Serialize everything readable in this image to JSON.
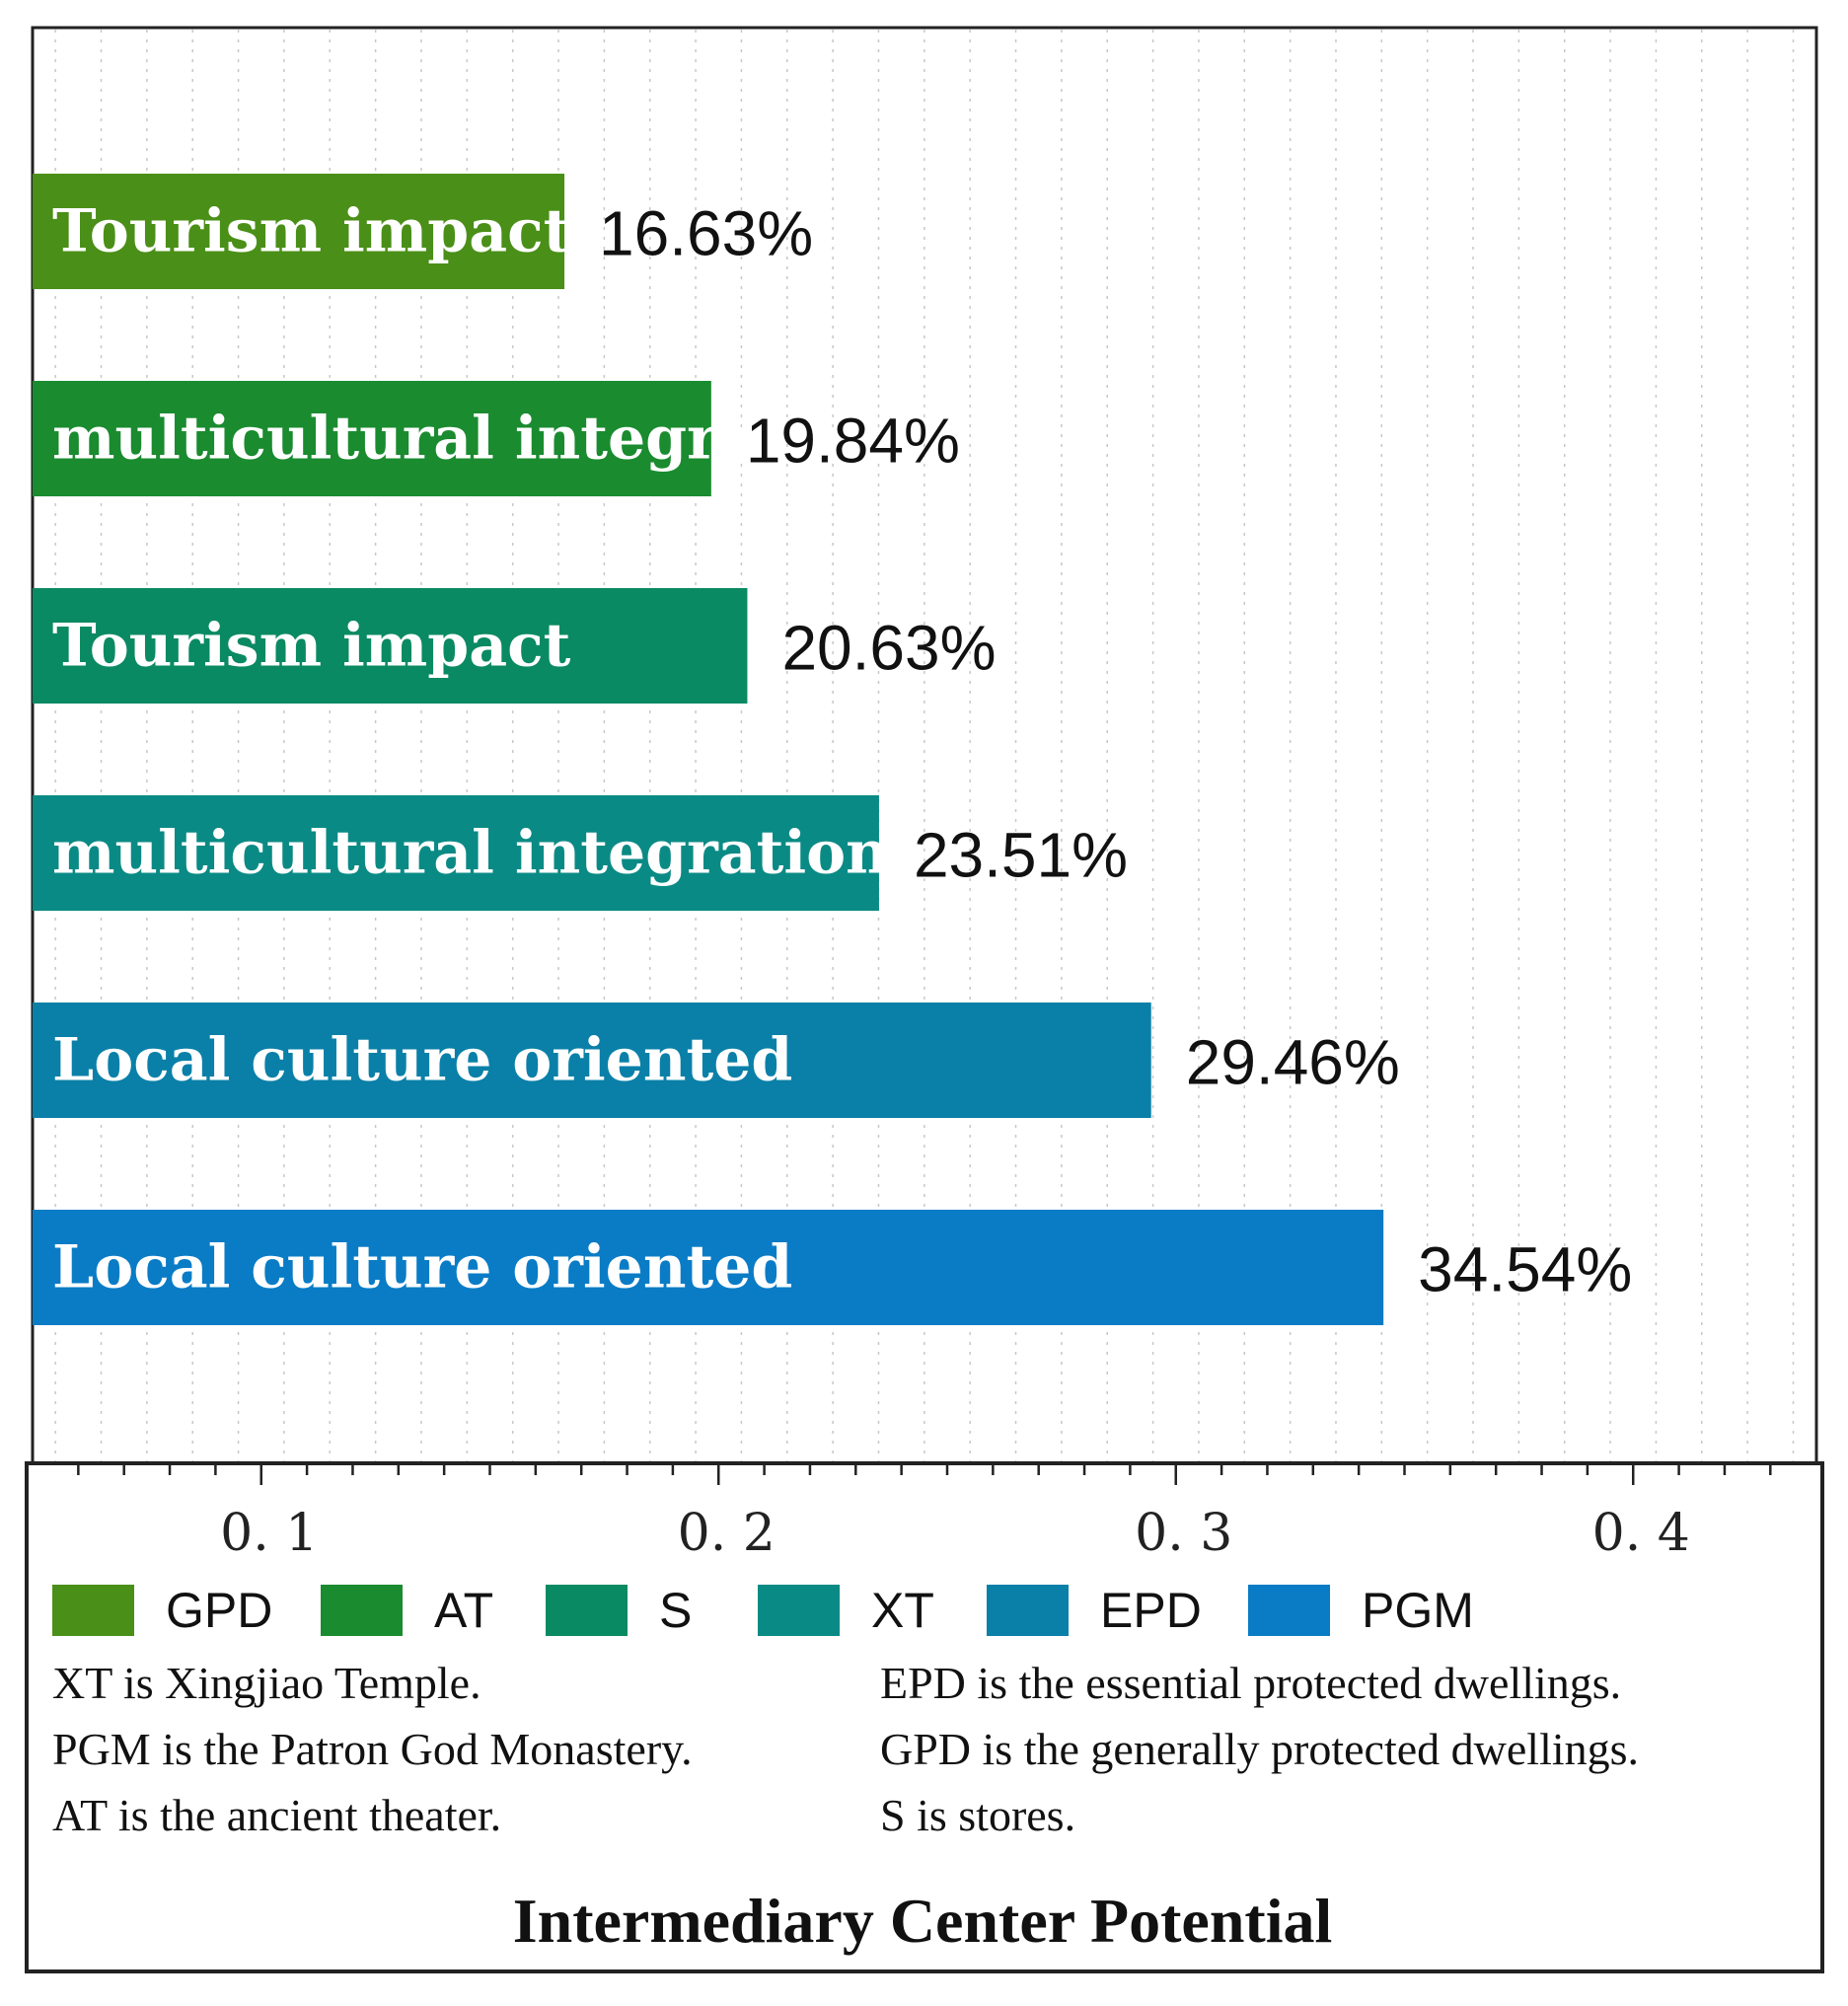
{
  "chart_data": {
    "type": "bar",
    "orientation": "horizontal",
    "title": "",
    "xlabel": "Intermediary Center Potential",
    "ylabel": "",
    "xlim": [
      0.05,
      0.44
    ],
    "xticks": [
      0.1,
      0.2,
      0.3,
      0.4
    ],
    "xtick_labels": [
      "0. 1",
      "0. 2",
      "0. 3",
      "0. 4"
    ],
    "grid": true,
    "categories": [
      "GPD",
      "AT",
      "S",
      "XT",
      "EPD",
      "PGM"
    ],
    "values": [
      0.1663,
      0.1984,
      0.2063,
      0.2351,
      0.2946,
      0.3454
    ],
    "bar_labels": [
      "Tourism impact",
      "multicultural integration",
      "Tourism impact",
      "multicultural integration",
      "Local culture oriented",
      "Local culture oriented"
    ],
    "value_labels": [
      "16.63%",
      "19.84%",
      "20.63%",
      "23.51%",
      "29.46%",
      "34.54%"
    ],
    "colors": [
      "#4a8f17",
      "#1a8b2f",
      "#0a8a62",
      "#0a8a85",
      "#0a80a8",
      "#0a7cc6"
    ],
    "legend": {
      "placement": "bottom",
      "items": [
        "GPD",
        "AT",
        "S",
        "XT",
        "EPD",
        "PGM"
      ]
    },
    "notes_left": [
      "XT is Xingjiao Temple.",
      "PGM is the Patron God Monastery.",
      "AT is the ancient theater."
    ],
    "notes_right": [
      "EPD is the essential protected dwellings.",
      "GPD is the generally protected dwellings.",
      "S is stores."
    ]
  }
}
